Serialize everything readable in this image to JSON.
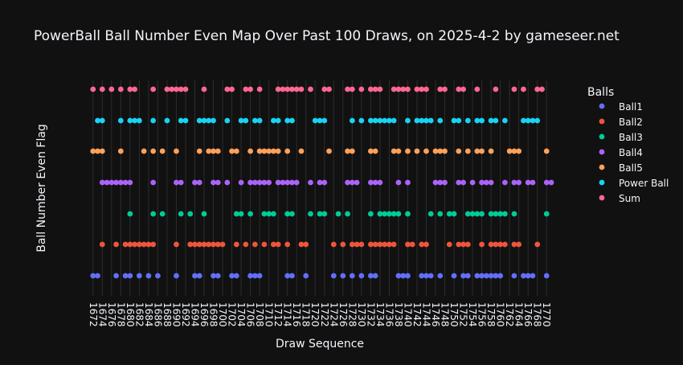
{
  "chart_data": {
    "type": "scatter",
    "title": "PowerBall Ball Number Even Map Over Past 100 Draws, on 2025-4-2 by gameseer.net",
    "xlabel": "Draw Sequence",
    "ylabel": "Ball Number Even Flag",
    "xlim": [
      1671,
      1771
    ],
    "x_tick_step": 2,
    "grid": "vertical",
    "legend": {
      "title": "Balls",
      "position": "right"
    },
    "colors": {
      "background": "#111111",
      "grid": "#2c2c2c",
      "text": "#f2f5fa",
      "Ball1": "#636efa",
      "Ball2": "#ef553b",
      "Ball3": "#00cc96",
      "Ball4": "#ab63fa",
      "Ball5": "#ffa15a",
      "Power Ball": "#19d3f3",
      "Sum": "#ff6692"
    },
    "series": [
      {
        "name": "Ball1",
        "x": [
          1672,
          1673,
          1677,
          1679,
          1680,
          1682,
          1684,
          1686,
          1690,
          1694,
          1695,
          1698,
          1699,
          1702,
          1703,
          1706,
          1707,
          1708,
          1714,
          1715,
          1718,
          1724,
          1726,
          1728,
          1730,
          1732,
          1733,
          1738,
          1739,
          1740,
          1743,
          1744,
          1745,
          1747,
          1750,
          1752,
          1753,
          1755,
          1756,
          1757,
          1758,
          1759,
          1760,
          1763,
          1765,
          1766,
          1767,
          1770
        ]
      },
      {
        "name": "Ball2",
        "x": [
          1674,
          1677,
          1679,
          1680,
          1681,
          1682,
          1683,
          1684,
          1685,
          1690,
          1693,
          1694,
          1695,
          1696,
          1697,
          1698,
          1699,
          1700,
          1703,
          1705,
          1707,
          1709,
          1711,
          1712,
          1714,
          1717,
          1718,
          1724,
          1726,
          1728,
          1729,
          1730,
          1732,
          1733,
          1734,
          1735,
          1736,
          1737,
          1740,
          1741,
          1743,
          1744,
          1749,
          1751,
          1752,
          1753,
          1756,
          1758,
          1759,
          1760,
          1761,
          1763,
          1764,
          1768
        ]
      },
      {
        "name": "Ball3",
        "x": [
          1680,
          1685,
          1687,
          1691,
          1693,
          1696,
          1703,
          1704,
          1706,
          1709,
          1710,
          1711,
          1714,
          1715,
          1719,
          1721,
          1722,
          1725,
          1727,
          1732,
          1734,
          1735,
          1736,
          1737,
          1738,
          1740,
          1745,
          1747,
          1749,
          1750,
          1753,
          1754,
          1755,
          1756,
          1758,
          1759,
          1760,
          1761,
          1763,
          1770
        ]
      },
      {
        "name": "Ball4",
        "x": [
          1674,
          1675,
          1676,
          1677,
          1678,
          1679,
          1680,
          1685,
          1690,
          1691,
          1694,
          1695,
          1698,
          1699,
          1701,
          1704,
          1706,
          1707,
          1708,
          1709,
          1710,
          1712,
          1713,
          1714,
          1715,
          1716,
          1719,
          1721,
          1722,
          1727,
          1728,
          1729,
          1732,
          1733,
          1734,
          1738,
          1740,
          1746,
          1747,
          1748,
          1751,
          1752,
          1754,
          1756,
          1757,
          1758,
          1761,
          1763,
          1764,
          1766,
          1767,
          1770,
          1771
        ]
      },
      {
        "name": "Ball5",
        "x": [
          1672,
          1673,
          1674,
          1678,
          1683,
          1685,
          1687,
          1690,
          1695,
          1697,
          1698,
          1699,
          1702,
          1703,
          1706,
          1708,
          1709,
          1710,
          1711,
          1712,
          1714,
          1717,
          1723,
          1727,
          1728,
          1732,
          1733,
          1737,
          1738,
          1740,
          1742,
          1744,
          1746,
          1747,
          1748,
          1751,
          1753,
          1755,
          1756,
          1758,
          1762,
          1763,
          1764,
          1770
        ]
      },
      {
        "name": "Power Ball",
        "x": [
          1673,
          1674,
          1678,
          1680,
          1681,
          1682,
          1685,
          1688,
          1691,
          1692,
          1695,
          1696,
          1697,
          1698,
          1701,
          1704,
          1705,
          1707,
          1708,
          1711,
          1712,
          1714,
          1715,
          1720,
          1721,
          1722,
          1728,
          1730,
          1732,
          1733,
          1734,
          1735,
          1736,
          1737,
          1740,
          1742,
          1743,
          1744,
          1745,
          1747,
          1750,
          1751,
          1753,
          1755,
          1756,
          1758,
          1759,
          1761,
          1765,
          1766,
          1767,
          1768
        ]
      },
      {
        "name": "Sum",
        "x": [
          1672,
          1674,
          1676,
          1678,
          1680,
          1681,
          1685,
          1688,
          1689,
          1690,
          1691,
          1692,
          1696,
          1701,
          1702,
          1705,
          1706,
          1708,
          1712,
          1713,
          1714,
          1715,
          1716,
          1717,
          1719,
          1722,
          1723,
          1727,
          1728,
          1730,
          1732,
          1733,
          1734,
          1737,
          1738,
          1739,
          1740,
          1742,
          1743,
          1744,
          1747,
          1748,
          1751,
          1752,
          1755,
          1759,
          1763,
          1765,
          1768,
          1769
        ]
      }
    ]
  }
}
